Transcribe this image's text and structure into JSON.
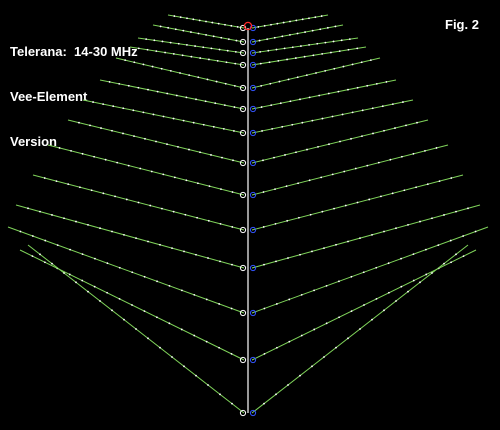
{
  "title_lines": [
    "Telerana:  14-30 MHz",
    "Vee-Element",
    "Version"
  ],
  "figure_label": "Fig. 2",
  "colors": {
    "background": "#000000",
    "text": "#ffffff",
    "boom": "#ffffff",
    "element": "#7fd35a",
    "segment_dot": "#ffffff",
    "feed_marker": "#ff2a2a",
    "node_marker": "#3355ff",
    "junction_marker": "#ffffff"
  },
  "element_count": 14
}
